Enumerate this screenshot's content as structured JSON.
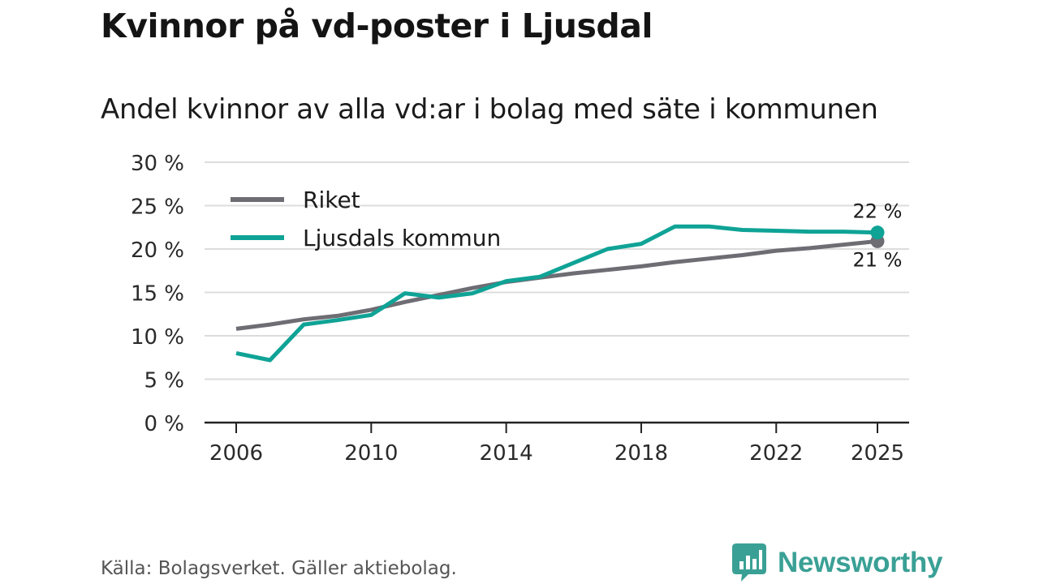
{
  "header": {
    "title": "Kvinnor på vd-poster i Ljusdal",
    "subtitle": "Andel kvinnor av alla vd:ar i bolag med säte i kommunen"
  },
  "footer": {
    "source": "Källa: Bolagsverket. Gäller aktiebolag.",
    "brand": "Newsworthy"
  },
  "colors": {
    "riket": "#6e6d74",
    "ljusdal": "#0fa396",
    "grid": "#dcdcdc",
    "axis": "#222222",
    "brand": "#3aa095"
  },
  "chart_data": {
    "type": "line",
    "title": "Kvinnor på vd-poster i Ljusdal",
    "subtitle": "Andel kvinnor av alla vd:ar i bolag med säte i kommunen",
    "xlabel": "",
    "ylabel": "",
    "xlim": [
      2006,
      2025
    ],
    "ylim": [
      0,
      30
    ],
    "grid": true,
    "legend_position": "top-left",
    "x_ticks": [
      2006,
      2010,
      2014,
      2018,
      2022,
      2025
    ],
    "x_tick_labels": [
      "2006",
      "2010",
      "2014",
      "2018",
      "2022",
      "2025"
    ],
    "y_ticks": [
      0,
      5,
      10,
      15,
      20,
      25,
      30
    ],
    "y_tick_labels": [
      "0 %",
      "5 %",
      "10 %",
      "15 %",
      "20 %",
      "25 %",
      "30 %"
    ],
    "x": [
      2006,
      2007,
      2008,
      2009,
      2010,
      2011,
      2012,
      2013,
      2014,
      2015,
      2016,
      2017,
      2018,
      2019,
      2020,
      2021,
      2022,
      2023,
      2024,
      2025
    ],
    "series": [
      {
        "name": "Riket",
        "key": "riket",
        "values": [
          10.8,
          11.3,
          11.9,
          12.3,
          13.0,
          13.9,
          14.7,
          15.5,
          16.2,
          16.7,
          17.2,
          17.6,
          18.0,
          18.5,
          18.9,
          19.3,
          19.8,
          20.1,
          20.5,
          20.9
        ],
        "end_label": "21 %"
      },
      {
        "name": "Ljusdals kommun",
        "key": "ljusdal",
        "values": [
          8.0,
          7.2,
          11.3,
          11.8,
          12.4,
          14.9,
          14.4,
          14.9,
          16.3,
          16.8,
          18.4,
          20.0,
          20.6,
          22.6,
          22.6,
          22.2,
          22.1,
          22.0,
          22.0,
          21.9
        ],
        "end_label": "22 %"
      }
    ]
  }
}
